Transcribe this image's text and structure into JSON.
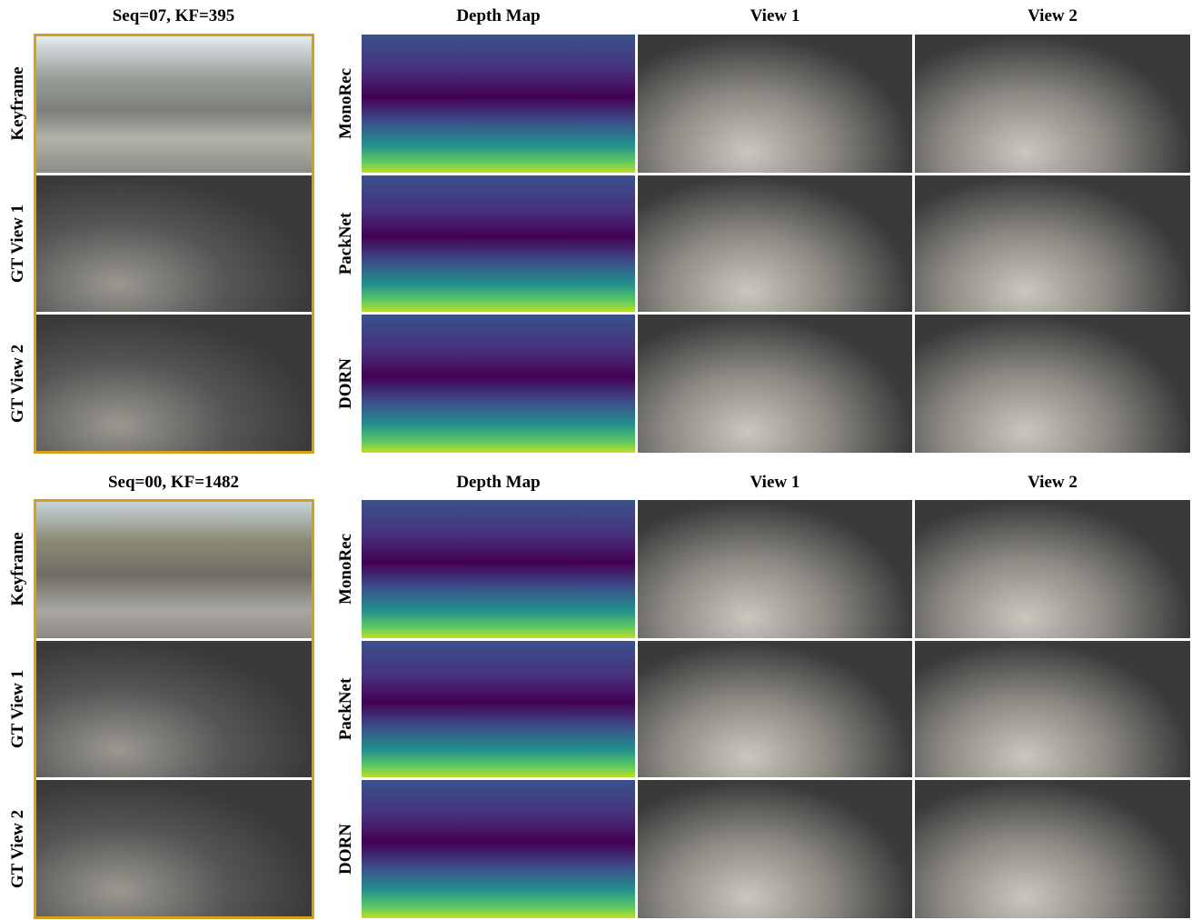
{
  "panels": [
    {
      "title": "Seq=07, KF=395",
      "gt_rows": [
        "Keyframe",
        "GT View 1",
        "GT View 2"
      ],
      "columns": [
        "Depth Map",
        "View 1",
        "View 2"
      ],
      "methods": [
        "MonoRec",
        "PackNet",
        "DORN"
      ]
    },
    {
      "title": "Seq=00, KF=1482",
      "gt_rows": [
        "Keyframe",
        "GT View 1",
        "GT View 2"
      ],
      "columns": [
        "Depth Map",
        "View 1",
        "View 2"
      ],
      "methods": [
        "MonoRec",
        "PackNet",
        "DORN"
      ]
    }
  ]
}
